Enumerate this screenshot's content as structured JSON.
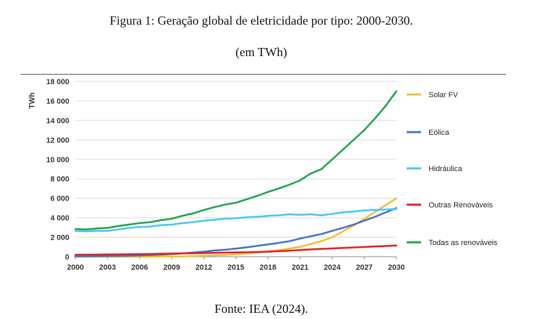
{
  "figure": {
    "title": "Figura 1: Geração global de eletricidade por tipo: 2000-2030.",
    "subtitle": "(em TWh)",
    "source": "Fonte: IEA (2024)."
  },
  "chart_data": {
    "type": "line",
    "ylabel": "TWh",
    "xlabel": "",
    "xlim": [
      2000,
      2030
    ],
    "ylim": [
      0,
      18000
    ],
    "x_ticks": [
      "2000",
      "2003",
      "2006",
      "2009",
      "2012",
      "2015",
      "2018",
      "2021",
      "2024",
      "2027",
      "2030"
    ],
    "y_ticks": [
      "0",
      "2 000",
      "4 000",
      "6 000",
      "8 000",
      "10 000",
      "12 000",
      "14 000",
      "16 000",
      "18 000"
    ],
    "grid": "horizontal",
    "legend_placement": "right",
    "x": [
      2000,
      2001,
      2002,
      2003,
      2004,
      2005,
      2006,
      2007,
      2008,
      2009,
      2010,
      2011,
      2012,
      2013,
      2014,
      2015,
      2016,
      2017,
      2018,
      2019,
      2020,
      2021,
      2022,
      2023,
      2024,
      2025,
      2026,
      2027,
      2028,
      2029,
      2030
    ],
    "series": [
      {
        "name": "Solar FV",
        "color": "#f5bf2b",
        "values": [
          0,
          0,
          0,
          0,
          10,
          10,
          10,
          10,
          20,
          20,
          30,
          60,
          100,
          140,
          190,
          250,
          330,
          440,
          560,
          680,
          830,
          1020,
          1300,
          1600,
          2000,
          2600,
          3200,
          3900,
          4600,
          5300,
          6000
        ]
      },
      {
        "name": "Eólica",
        "color": "#4473c4",
        "values": [
          30,
          40,
          50,
          60,
          80,
          100,
          130,
          170,
          220,
          270,
          340,
          430,
          520,
          640,
          720,
          830,
          960,
          1120,
          1260,
          1420,
          1590,
          1860,
          2100,
          2330,
          2650,
          2970,
          3300,
          3700,
          4100,
          4550,
          5000
        ]
      },
      {
        "name": "Hidráulica",
        "color": "#41c8f4",
        "values": [
          2650,
          2600,
          2650,
          2650,
          2800,
          2950,
          3050,
          3100,
          3250,
          3300,
          3450,
          3550,
          3700,
          3800,
          3900,
          3950,
          4050,
          4100,
          4200,
          4250,
          4350,
          4300,
          4350,
          4250,
          4400,
          4550,
          4650,
          4750,
          4800,
          4850,
          4900
        ]
      },
      {
        "name": "Outras Renováveis",
        "color": "#e31e24",
        "values": [
          200,
          210,
          220,
          230,
          240,
          250,
          260,
          280,
          300,
          320,
          340,
          360,
          380,
          400,
          420,
          440,
          460,
          480,
          510,
          560,
          620,
          680,
          750,
          800,
          850,
          900,
          950,
          1000,
          1050,
          1100,
          1150
        ]
      },
      {
        "name": "Todas as renováveis",
        "color": "#1ea34a",
        "values": [
          2850,
          2800,
          2900,
          2950,
          3150,
          3300,
          3450,
          3550,
          3750,
          3900,
          4200,
          4450,
          4800,
          5100,
          5350,
          5550,
          5900,
          6250,
          6650,
          7000,
          7400,
          7850,
          8550,
          9000,
          10000,
          11000,
          12000,
          13000,
          14200,
          15500,
          17000
        ]
      }
    ]
  }
}
